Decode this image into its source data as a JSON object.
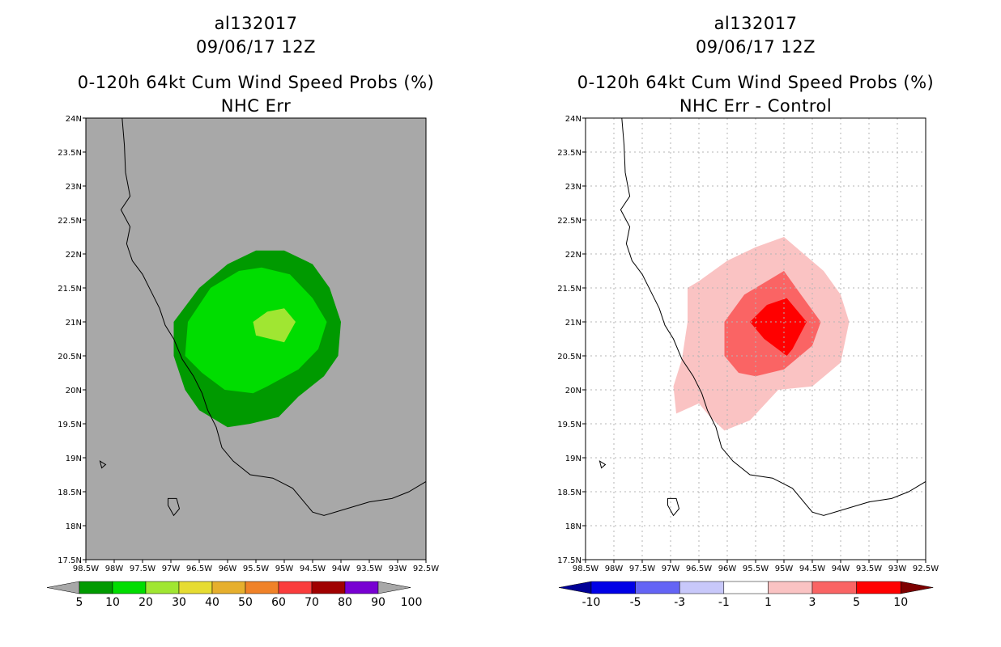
{
  "panels": [
    {
      "title_lines": [
        "al132017",
        "09/06/17 12Z"
      ],
      "subtitle_lines": [
        "0-120h 64kt Cum Wind Speed Probs (%)",
        "NHC Err"
      ],
      "background": "#a8a8a8",
      "gridlines": false,
      "colorbar_labels": [
        "5",
        "10",
        "20",
        "30",
        "40",
        "50",
        "60",
        "70",
        "80",
        "90",
        "100"
      ],
      "colorbar_colors": [
        "#009a00",
        "#00dd00",
        "#a0e632",
        "#e6dc32",
        "#e6af2d",
        "#f08228",
        "#fa3c3c",
        "#a00000",
        "#7800d2"
      ],
      "colorbar_under": "#a8a8a8",
      "colorbar_over": "#a8a8a8",
      "shading_legend": [
        {
          "category": "5-10%",
          "color": "#009a00"
        },
        {
          "category": "10-20%",
          "color": "#00dd00"
        },
        {
          "category": "20-30%",
          "color": "#a0e632"
        }
      ]
    },
    {
      "title_lines": [
        "al132017",
        "09/06/17 12Z"
      ],
      "subtitle_lines": [
        "0-120h 64kt Cum Wind Speed Probs (%)",
        "NHC Err - Control"
      ],
      "background": "#ffffff",
      "gridlines": true,
      "colorbar_labels": [
        "-10",
        "-5",
        "-3",
        "-1",
        "1",
        "3",
        "5",
        "10"
      ],
      "colorbar_colors": [
        "#0000e6",
        "#6464f5",
        "#c8c8fa",
        "#ffffff",
        "#fac3c3",
        "#fa6464",
        "#ff0000"
      ],
      "colorbar_under": "#000096",
      "colorbar_over": "#7d0000",
      "shading_legend": [
        {
          "category": "1-3",
          "color": "#fac3c3"
        },
        {
          "category": "3-5",
          "color": "#fa6464"
        },
        {
          "category": "5-10",
          "color": "#ff0000"
        }
      ]
    }
  ],
  "axes": {
    "lon_labels": [
      "98.5W",
      "98W",
      "97.5W",
      "97W",
      "96.5W",
      "96W",
      "95.5W",
      "95W",
      "94.5W",
      "94W",
      "93.5W",
      "93W",
      "92.5W"
    ],
    "lat_labels": [
      "17.5N",
      "18N",
      "18.5N",
      "19N",
      "19.5N",
      "20N",
      "20.5N",
      "21N",
      "21.5N",
      "22N",
      "22.5N",
      "23N",
      "23.5N",
      "24N"
    ],
    "lon_values": [
      -98.5,
      -98,
      -97.5,
      -97,
      -96.5,
      -96,
      -95.5,
      -95,
      -94.5,
      -94,
      -93.5,
      -93,
      -92.5
    ],
    "lat_values": [
      17.5,
      18,
      18.5,
      19,
      19.5,
      20,
      20.5,
      21,
      21.5,
      22,
      22.5,
      23,
      23.5,
      24
    ],
    "lon_range": [
      -98.5,
      -92.5
    ],
    "lat_range": [
      17.5,
      24
    ]
  },
  "coastline": [
    [
      -97.86,
      24.0
    ],
    [
      -97.82,
      23.6
    ],
    [
      -97.8,
      23.2
    ],
    [
      -97.72,
      22.85
    ],
    [
      -97.88,
      22.65
    ],
    [
      -97.72,
      22.4
    ],
    [
      -97.78,
      22.15
    ],
    [
      -97.68,
      21.9
    ],
    [
      -97.5,
      21.7
    ],
    [
      -97.35,
      21.45
    ],
    [
      -97.2,
      21.2
    ],
    [
      -97.1,
      20.95
    ],
    [
      -96.95,
      20.75
    ],
    [
      -96.8,
      20.45
    ],
    [
      -96.6,
      20.2
    ],
    [
      -96.45,
      19.95
    ],
    [
      -96.35,
      19.7
    ],
    [
      -96.2,
      19.45
    ],
    [
      -96.1,
      19.15
    ],
    [
      -95.9,
      18.95
    ],
    [
      -95.6,
      18.75
    ],
    [
      -95.2,
      18.7
    ],
    [
      -94.85,
      18.55
    ],
    [
      -94.5,
      18.2
    ],
    [
      -94.3,
      18.15
    ],
    [
      -93.9,
      18.25
    ],
    [
      -93.5,
      18.35
    ],
    [
      -93.1,
      18.4
    ],
    [
      -92.8,
      18.5
    ],
    [
      -92.5,
      18.65
    ]
  ],
  "islands": [
    [
      [
        -98.25,
        18.95
      ],
      [
        -98.15,
        18.9
      ],
      [
        -98.22,
        18.85
      ]
    ],
    [
      [
        -97.05,
        18.4
      ],
      [
        -96.9,
        18.4
      ],
      [
        -96.85,
        18.25
      ],
      [
        -96.95,
        18.15
      ],
      [
        -97.05,
        18.3
      ]
    ]
  ],
  "contours_left": [
    {
      "level": "5-10%",
      "color": "#009a00",
      "points": [
        [
          -96.95,
          20.5
        ],
        [
          -96.95,
          21.0
        ],
        [
          -96.5,
          21.5
        ],
        [
          -96.0,
          21.85
        ],
        [
          -95.5,
          22.05
        ],
        [
          -95.0,
          22.05
        ],
        [
          -94.5,
          21.85
        ],
        [
          -94.2,
          21.5
        ],
        [
          -94.0,
          21.0
        ],
        [
          -94.05,
          20.5
        ],
        [
          -94.3,
          20.2
        ],
        [
          -94.75,
          19.9
        ],
        [
          -95.1,
          19.6
        ],
        [
          -95.6,
          19.5
        ],
        [
          -96.0,
          19.45
        ],
        [
          -96.5,
          19.7
        ],
        [
          -96.75,
          20.0
        ]
      ]
    },
    {
      "level": "10-20%",
      "color": "#00dd00",
      "points": [
        [
          -96.75,
          20.5
        ],
        [
          -96.7,
          21.0
        ],
        [
          -96.3,
          21.5
        ],
        [
          -95.8,
          21.75
        ],
        [
          -95.4,
          21.8
        ],
        [
          -94.9,
          21.7
        ],
        [
          -94.5,
          21.35
        ],
        [
          -94.25,
          21.0
        ],
        [
          -94.4,
          20.6
        ],
        [
          -94.75,
          20.3
        ],
        [
          -95.3,
          20.05
        ],
        [
          -95.55,
          19.95
        ],
        [
          -96.05,
          20.0
        ],
        [
          -96.45,
          20.25
        ]
      ]
    },
    {
      "level": "20-30%",
      "color": "#a0e632",
      "points": [
        [
          -95.55,
          21.0
        ],
        [
          -95.3,
          21.15
        ],
        [
          -95.0,
          21.2
        ],
        [
          -94.8,
          21.0
        ],
        [
          -95.0,
          20.7
        ],
        [
          -95.5,
          20.8
        ]
      ]
    }
  ],
  "contours_right": [
    {
      "level": "1-3",
      "color": "#fac3c3",
      "points": [
        [
          -96.9,
          19.65
        ],
        [
          -96.5,
          19.8
        ],
        [
          -96.3,
          19.6
        ],
        [
          -96.05,
          19.4
        ],
        [
          -95.6,
          19.55
        ],
        [
          -95.1,
          20.0
        ],
        [
          -94.5,
          20.05
        ],
        [
          -94.0,
          20.4
        ],
        [
          -93.85,
          21.0
        ],
        [
          -94.0,
          21.4
        ],
        [
          -94.3,
          21.75
        ],
        [
          -95.0,
          22.25
        ],
        [
          -95.5,
          22.1
        ],
        [
          -96.0,
          21.9
        ],
        [
          -96.5,
          21.6
        ],
        [
          -96.7,
          21.5
        ],
        [
          -96.7,
          21.0
        ],
        [
          -96.8,
          20.45
        ],
        [
          -96.95,
          20.05
        ]
      ]
    },
    {
      "level": "3-5",
      "color": "#fa6464",
      "points": [
        [
          -96.05,
          20.5
        ],
        [
          -96.05,
          21.0
        ],
        [
          -95.7,
          21.4
        ],
        [
          -95.3,
          21.6
        ],
        [
          -95.0,
          21.75
        ],
        [
          -94.7,
          21.4
        ],
        [
          -94.35,
          21.0
        ],
        [
          -94.5,
          20.65
        ],
        [
          -95.0,
          20.3
        ],
        [
          -95.5,
          20.2
        ],
        [
          -95.8,
          20.25
        ]
      ]
    },
    {
      "level": "5-10",
      "color": "#ff0000",
      "points": [
        [
          -95.6,
          21.0
        ],
        [
          -95.3,
          21.25
        ],
        [
          -94.95,
          21.35
        ],
        [
          -94.6,
          21.0
        ],
        [
          -94.85,
          20.6
        ],
        [
          -94.95,
          20.5
        ],
        [
          -95.35,
          20.75
        ]
      ]
    }
  ]
}
